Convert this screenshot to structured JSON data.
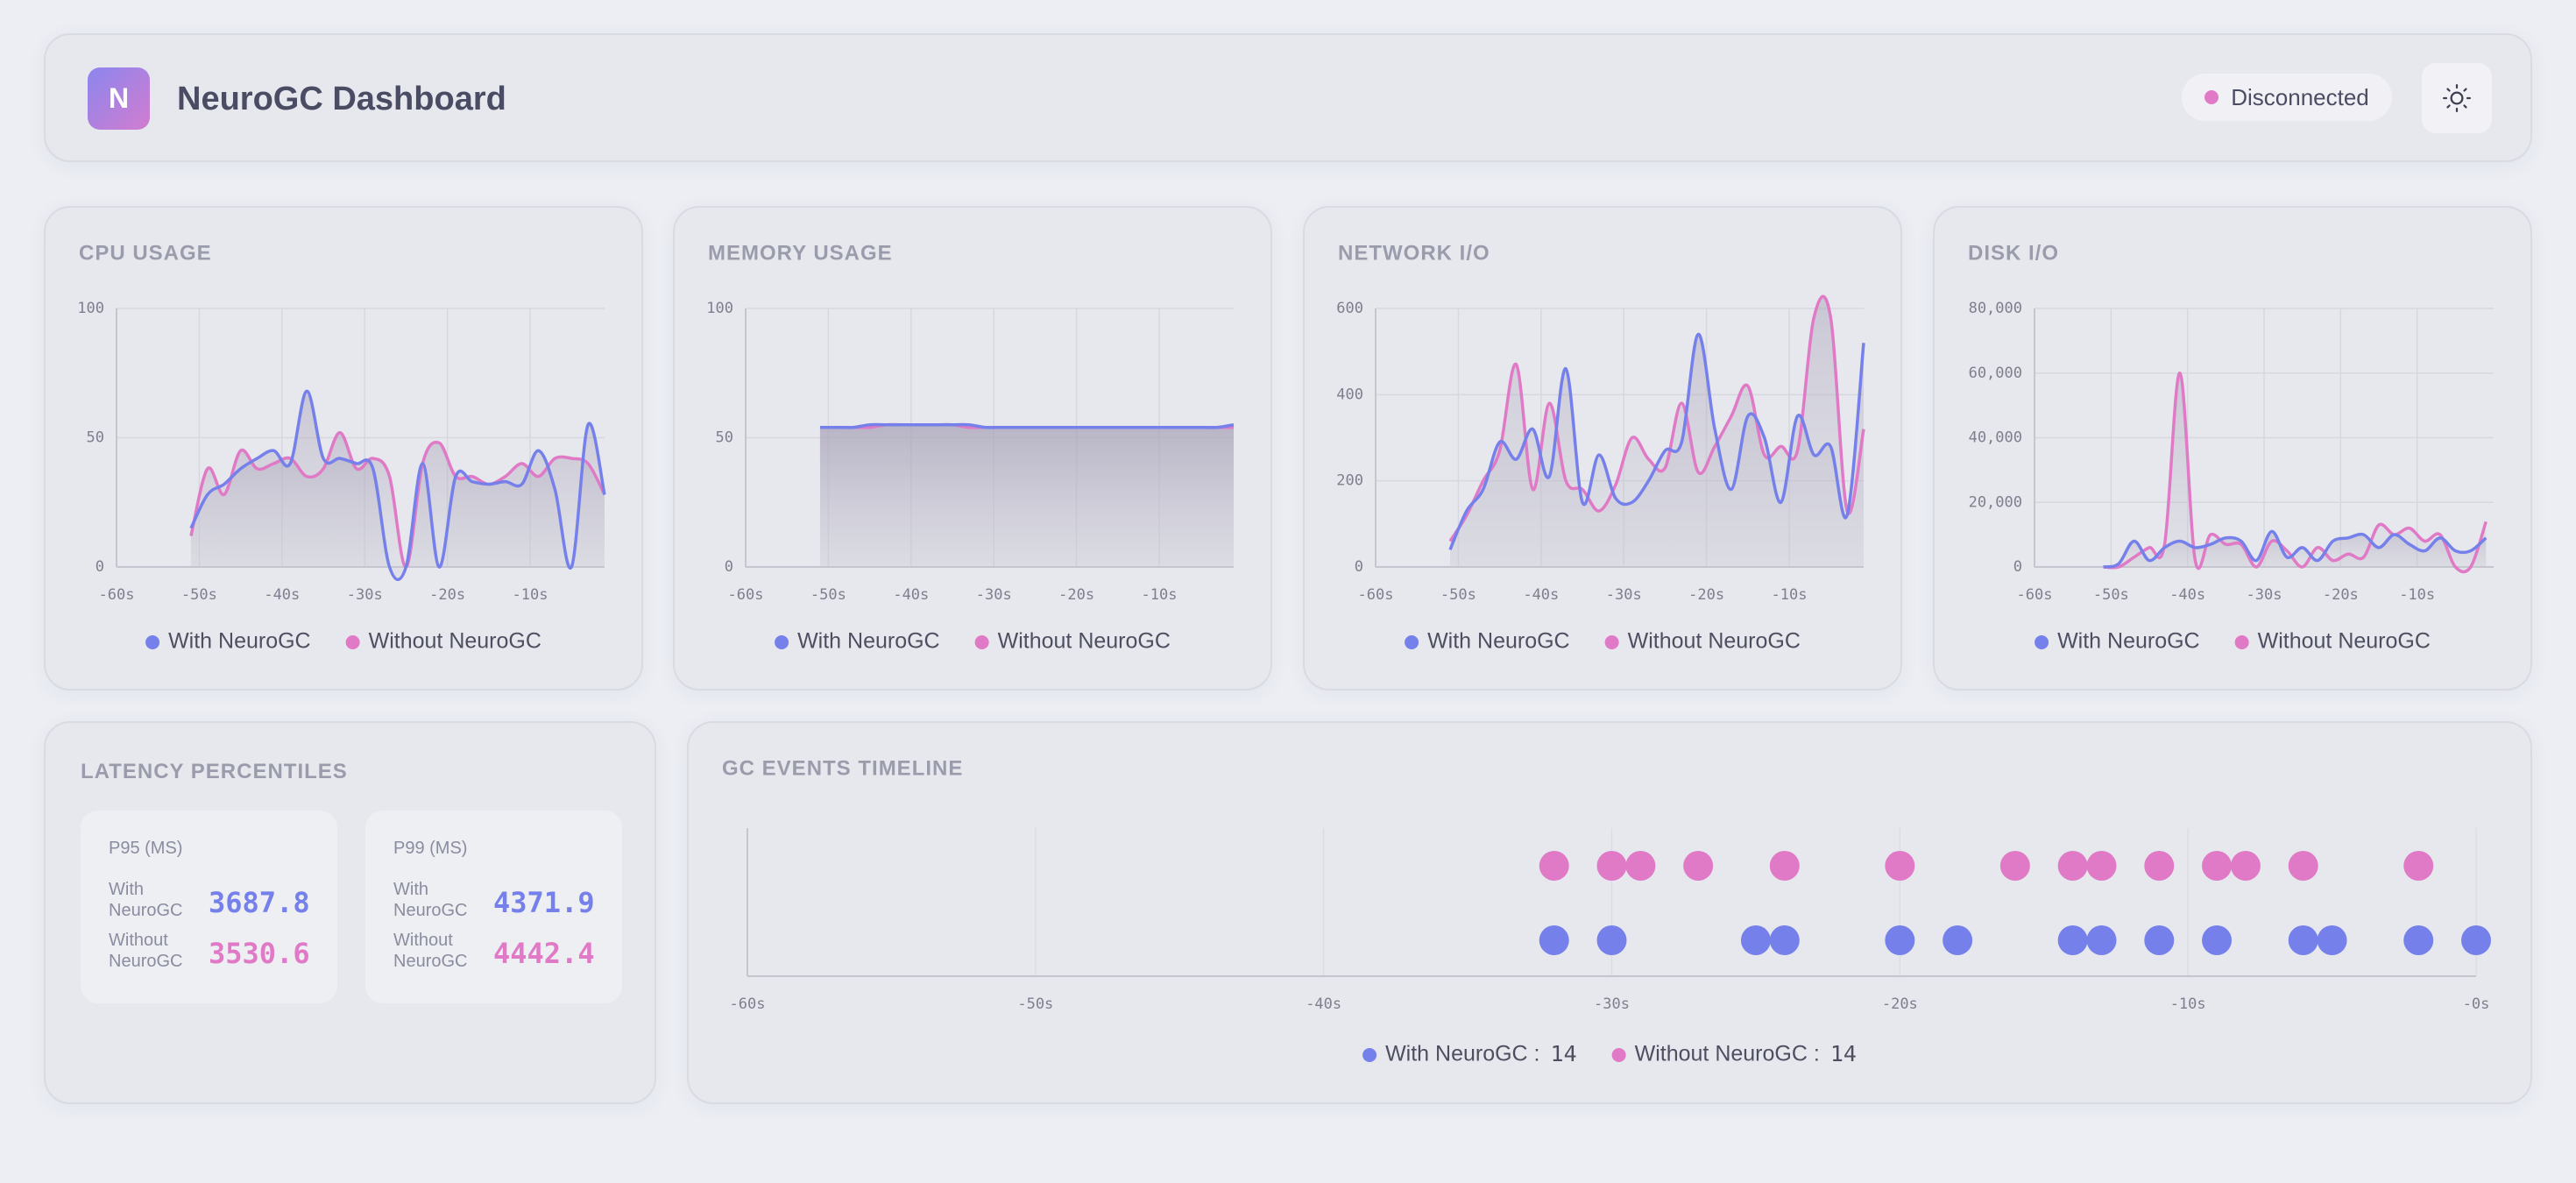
{
  "header": {
    "logo": "N",
    "title": "NeuroGC Dashboard",
    "status": "Disconnected"
  },
  "latency": {
    "title": "LATENCY PERCENTILES",
    "cards": [
      {
        "title": "P95 (MS)",
        "rows": [
          {
            "label": "With NeuroGC",
            "value": 3687.8,
            "color": "#7580ea"
          },
          {
            "label": "Without NeuroGC",
            "value": 3530.6,
            "color": "#e07ac6"
          }
        ]
      },
      {
        "title": "P99 (MS)",
        "rows": [
          {
            "label": "With NeuroGC",
            "value": 4371.9,
            "color": "#7580ea"
          },
          {
            "label": "Without NeuroGC",
            "value": 4442.4,
            "color": "#e07ac6"
          }
        ]
      }
    ]
  },
  "chart_data": [
    {
      "type": "line",
      "title": "CPU USAGE",
      "grid": true,
      "legend": "bottom",
      "x": [
        -51,
        -49,
        -47,
        -45,
        -43,
        -41,
        -39,
        -37,
        -35,
        -33,
        -31,
        -29,
        -27,
        -25,
        -23,
        -21,
        -19,
        -17,
        -15,
        -13,
        -11,
        -9,
        -7,
        -5,
        -3,
        -1
      ],
      "xlim": [
        -60,
        -1
      ],
      "xticks": [
        {
          "value": -60,
          "label": "-60s"
        },
        {
          "value": -50,
          "label": "-50s"
        },
        {
          "value": -40,
          "label": "-40s"
        },
        {
          "value": -30,
          "label": "-30s"
        },
        {
          "value": -20,
          "label": "-20s"
        },
        {
          "value": -10,
          "label": "-10s"
        }
      ],
      "ylim": [
        0,
        100
      ],
      "yticks": [
        0,
        50,
        100
      ],
      "series": [
        {
          "name": "With NeuroGC",
          "color": "#7580ea",
          "values": [
            15,
            28,
            32,
            38,
            42,
            45,
            40,
            68,
            42,
            42,
            40,
            38,
            0,
            0,
            40,
            0,
            35,
            33,
            32,
            33,
            32,
            45,
            30,
            0,
            55,
            28
          ]
        },
        {
          "name": "Without NeuroGC",
          "color": "#e07ac6",
          "values": [
            12,
            38,
            28,
            45,
            38,
            40,
            42,
            35,
            38,
            52,
            38,
            42,
            35,
            0,
            40,
            48,
            35,
            35,
            32,
            35,
            40,
            35,
            42,
            42,
            40,
            28
          ]
        }
      ]
    },
    {
      "type": "line",
      "title": "MEMORY USAGE",
      "grid": true,
      "legend": "bottom",
      "x": [
        -51,
        -49,
        -47,
        -45,
        -43,
        -41,
        -39,
        -37,
        -35,
        -33,
        -31,
        -29,
        -27,
        -25,
        -23,
        -21,
        -19,
        -17,
        -15,
        -13,
        -11,
        -9,
        -7,
        -5,
        -3,
        -1
      ],
      "xlim": [
        -60,
        -1
      ],
      "xticks": [
        {
          "value": -60,
          "label": "-60s"
        },
        {
          "value": -50,
          "label": "-50s"
        },
        {
          "value": -40,
          "label": "-40s"
        },
        {
          "value": -30,
          "label": "-30s"
        },
        {
          "value": -20,
          "label": "-20s"
        },
        {
          "value": -10,
          "label": "-10s"
        }
      ],
      "ylim": [
        0,
        100
      ],
      "yticks": [
        0,
        50,
        100
      ],
      "series": [
        {
          "name": "With NeuroGC",
          "color": "#7580ea",
          "values": [
            54,
            54,
            54,
            55,
            55,
            55,
            55,
            55,
            55,
            55,
            54,
            54,
            54,
            54,
            54,
            54,
            54,
            54,
            54,
            54,
            54,
            54,
            54,
            54,
            54,
            55
          ]
        },
        {
          "name": "Without NeuroGC",
          "color": "#e07ac6",
          "values": [
            54,
            54,
            54,
            54,
            55,
            55,
            55,
            55,
            55,
            54,
            54,
            54,
            54,
            54,
            54,
            54,
            54,
            54,
            54,
            54,
            54,
            54,
            54,
            54,
            54,
            54
          ]
        }
      ]
    },
    {
      "type": "line",
      "title": "NETWORK I/O",
      "grid": true,
      "legend": "bottom",
      "x": [
        -51,
        -49,
        -47,
        -45,
        -43,
        -41,
        -39,
        -37,
        -35,
        -33,
        -31,
        -29,
        -27,
        -25,
        -23,
        -21,
        -19,
        -17,
        -15,
        -13,
        -11,
        -9,
        -7,
        -5,
        -3,
        -1
      ],
      "xlim": [
        -60,
        -1
      ],
      "xticks": [
        {
          "value": -60,
          "label": "-60s"
        },
        {
          "value": -50,
          "label": "-50s"
        },
        {
          "value": -40,
          "label": "-40s"
        },
        {
          "value": -30,
          "label": "-30s"
        },
        {
          "value": -20,
          "label": "-20s"
        },
        {
          "value": -10,
          "label": "-10s"
        }
      ],
      "ylim": [
        0,
        600
      ],
      "yticks": [
        0,
        200,
        400,
        600
      ],
      "series": [
        {
          "name": "With NeuroGC",
          "color": "#7580ea",
          "values": [
            40,
            130,
            180,
            290,
            250,
            320,
            210,
            460,
            150,
            260,
            160,
            150,
            200,
            270,
            290,
            540,
            320,
            180,
            350,
            300,
            150,
            350,
            260,
            280,
            120,
            520
          ]
        },
        {
          "name": "Without NeuroGC",
          "color": "#e07ac6",
          "values": [
            60,
            120,
            200,
            270,
            470,
            180,
            380,
            200,
            180,
            130,
            190,
            300,
            250,
            230,
            380,
            220,
            280,
            350,
            420,
            260,
            280,
            270,
            580,
            580,
            130,
            320
          ]
        }
      ]
    },
    {
      "type": "line",
      "title": "DISK I/O",
      "grid": true,
      "legend": "bottom",
      "x": [
        -51,
        -49,
        -47,
        -45,
        -43,
        -41,
        -39,
        -37,
        -35,
        -33,
        -31,
        -29,
        -27,
        -25,
        -23,
        -21,
        -19,
        -17,
        -15,
        -13,
        -11,
        -9,
        -7,
        -5,
        -3,
        -1
      ],
      "xlim": [
        -60,
        0
      ],
      "xticks": [
        {
          "value": -60,
          "label": "-60s"
        },
        {
          "value": -50,
          "label": "-50s"
        },
        {
          "value": -40,
          "label": "-40s"
        },
        {
          "value": -30,
          "label": "-30s"
        },
        {
          "value": -20,
          "label": "-20s"
        },
        {
          "value": -10,
          "label": "-10s"
        }
      ],
      "ylim": [
        0,
        80000
      ],
      "yticks": [
        0,
        {
          "value": 20000,
          "label": "20,000"
        },
        {
          "value": 40000,
          "label": "40,000"
        },
        {
          "value": 60000,
          "label": "60,000"
        },
        {
          "value": 80000,
          "label": "80,000"
        }
      ],
      "series": [
        {
          "name": "With NeuroGC",
          "color": "#7580ea",
          "values": [
            0,
            1000,
            8000,
            2000,
            6000,
            8000,
            6000,
            7000,
            9000,
            8000,
            2000,
            11000,
            3000,
            6000,
            2000,
            8000,
            9000,
            10000,
            6000,
            10000,
            7000,
            5000,
            9000,
            5000,
            5000,
            9000
          ]
        },
        {
          "name": "Without NeuroGC",
          "color": "#e07ac6",
          "values": [
            0,
            0,
            3000,
            6000,
            7000,
            60000,
            2000,
            10000,
            7000,
            7000,
            0,
            8000,
            5000,
            0,
            6000,
            2000,
            4000,
            3000,
            13000,
            10000,
            12000,
            8000,
            10000,
            0,
            0,
            14000
          ]
        }
      ]
    },
    {
      "type": "timeline",
      "title": "GC EVENTS TIMELINE",
      "grid": true,
      "legend": "bottom",
      "xlim": [
        -60,
        0
      ],
      "xticks": [
        {
          "value": -60,
          "label": "-60s"
        },
        {
          "value": -50,
          "label": "-50s"
        },
        {
          "value": -40,
          "label": "-40s"
        },
        {
          "value": -30,
          "label": "-30s"
        },
        {
          "value": -20,
          "label": "-20s"
        },
        {
          "value": -10,
          "label": "-10s"
        },
        {
          "value": 0,
          "label": "-0s"
        }
      ],
      "series": [
        {
          "name": "With NeuroGC :",
          "color": "#7580ea",
          "count": 14,
          "x": [
            -32,
            -30,
            -25,
            -24,
            -20,
            -18,
            -14,
            -13,
            -11,
            -9,
            -6,
            -5,
            -2,
            0
          ]
        },
        {
          "name": "Without NeuroGC :",
          "color": "#e07ac6",
          "count": 14,
          "x": [
            -32,
            -30,
            -29,
            -27,
            -24,
            -20,
            -16,
            -14,
            -13,
            -11,
            -9,
            -8,
            -6,
            -2
          ]
        }
      ]
    }
  ]
}
